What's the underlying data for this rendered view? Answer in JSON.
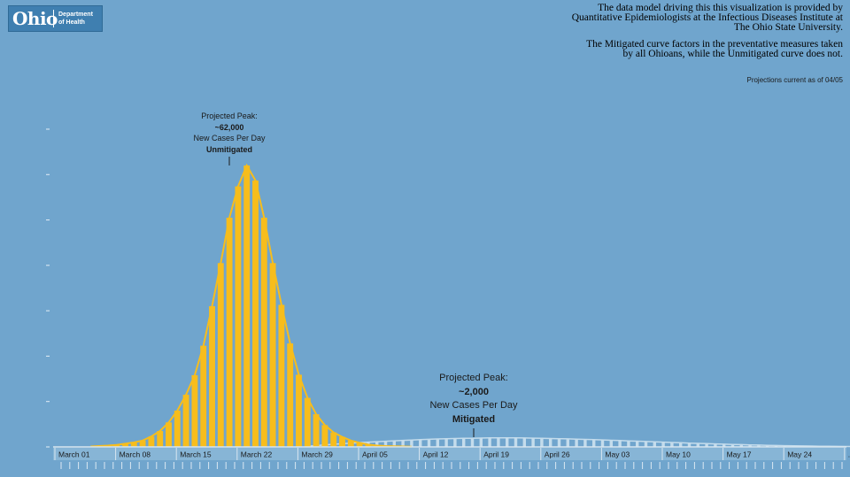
{
  "logo": {
    "word": "Ohio",
    "line1": "Department",
    "line2": "of Health"
  },
  "notes": {
    "p1_l1": "The data model driving this this visualization is provided by",
    "p1_l2": "Quantitative Epidemiologists at the Infectious Diseases Institute at",
    "p1_l3": "The Ohio State University.",
    "p2_l1": "The Mitigated curve factors in the preventative measures taken",
    "p2_l2": "by all Ohioans, while the Unmitigated curve does not."
  },
  "as_of": "Projections current as of 04/05",
  "annotations": {
    "unmitigated": {
      "l1": "Projected Peak:",
      "l2": "~62,000",
      "l3": "New Cases Per Day",
      "l4": "Unmitigated"
    },
    "mitigated": {
      "l1": "Projected Peak:",
      "l2": "~2,000",
      "l3": "New Cases Per Day",
      "l4": "Mitigated"
    }
  },
  "colors": {
    "unmitigated": "#f7bd1c",
    "mitigated": "#c4dcec",
    "background": "#70a5cd"
  },
  "chart_data": {
    "type": "bar",
    "title": "",
    "xlabel": "",
    "ylabel": "",
    "x_start": "2020-03-01",
    "ylim": [
      0,
      70000
    ],
    "grid": false,
    "tick_labels": [
      "March 01",
      "March 08",
      "March 15",
      "March 22",
      "March 29",
      "April 05",
      "April 12",
      "April 19",
      "April 26",
      "May 03",
      "May 10",
      "May 17",
      "May 24",
      "..."
    ],
    "series": [
      {
        "name": "Unmitigated",
        "start": "2020-03-04",
        "values": [
          100,
          200,
          300,
          450,
          700,
          1000,
          1400,
          2300,
          3500,
          5400,
          8000,
          11500,
          15800,
          22300,
          31000,
          40500,
          50500,
          57400,
          62000,
          58700,
          50500,
          40500,
          31300,
          22800,
          15900,
          10800,
          7200,
          4800,
          3200,
          2200,
          1400,
          900,
          500,
          300,
          200,
          150,
          100,
          50
        ]
      },
      {
        "name": "Mitigated",
        "start": "2020-03-29",
        "values": [
          150,
          300,
          450,
          580,
          700,
          830,
          950,
          1050,
          1150,
          1250,
          1350,
          1450,
          1530,
          1600,
          1680,
          1750,
          1800,
          1850,
          1900,
          1920,
          1950,
          1980,
          2000,
          2000,
          1980,
          1960,
          1930,
          1900,
          1860,
          1820,
          1770,
          1720,
          1660,
          1600,
          1540,
          1470,
          1400,
          1330,
          1260,
          1190,
          1120,
          1050,
          980,
          910,
          840,
          780,
          720,
          660,
          600,
          550,
          500,
          450,
          400,
          360,
          320,
          280,
          250,
          220,
          190,
          160,
          140,
          120,
          100,
          85,
          70
        ]
      }
    ]
  }
}
